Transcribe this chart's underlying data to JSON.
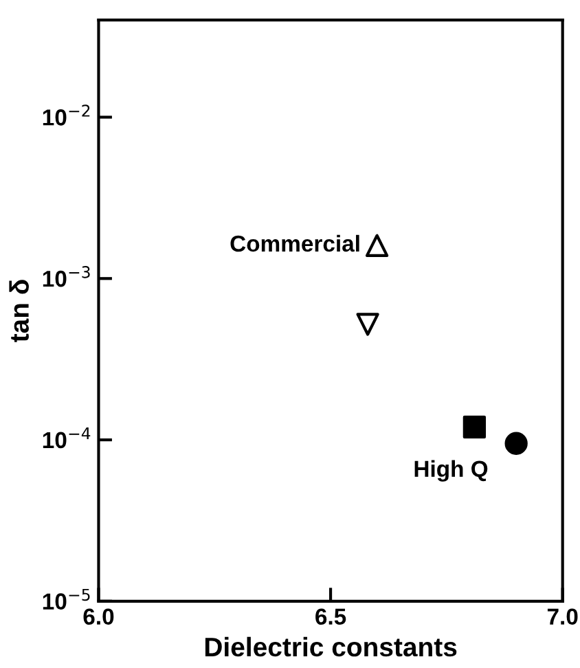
{
  "chart_data": {
    "type": "scatter",
    "xlabel": "Dielectric constants",
    "ylabel": "tan δ",
    "log": "y",
    "xlim": [
      6.0,
      7.0
    ],
    "xticks": [
      {
        "value": 6.0,
        "label": "6.0"
      },
      6.5,
      {
        "value": 7.0,
        "label": "7.0"
      }
    ],
    "ylim": [
      1e-05,
      0.04
    ],
    "yticks": [
      {
        "value": 1e-05,
        "label": "10$^{−5}$"
      },
      {
        "value": 0.0001,
        "label": "10$^{−4}$"
      },
      {
        "value": 0.001,
        "label": "10$^{−3}$"
      },
      {
        "value": 0.01,
        "label": "10$^{−2}$"
      }
    ],
    "grid": false,
    "legend": false,
    "series": [
      {
        "color": "#000000",
        "colors": [
          "#ffffff"
        ],
        "marker": "triangle",
        "x": [
          6.6
        ],
        "values": [
          0.0016
        ]
      },
      {
        "color": "#000000",
        "colors": [
          "#ffffff"
        ],
        "marker": "triangle_down",
        "x": [
          6.58
        ],
        "values": [
          0.00052
        ]
      },
      {
        "color": "#000000",
        "colors": [
          "#000000"
        ],
        "marker": "square",
        "x": [
          6.81
        ],
        "values": [
          0.00012
        ]
      },
      {
        "color": "#000000",
        "colors": [
          "#000000"
        ],
        "marker": "circle",
        "x": [
          6.9
        ],
        "values": [
          9.5e-05
        ]
      }
    ],
    "annotations": [
      {
        "text": "Commercial",
        "x": 6.6,
        "y": 0.0016
      },
      {
        "text": "High Q",
        "x": 6.9,
        "y": 9.5e-05
      }
    ]
  }
}
